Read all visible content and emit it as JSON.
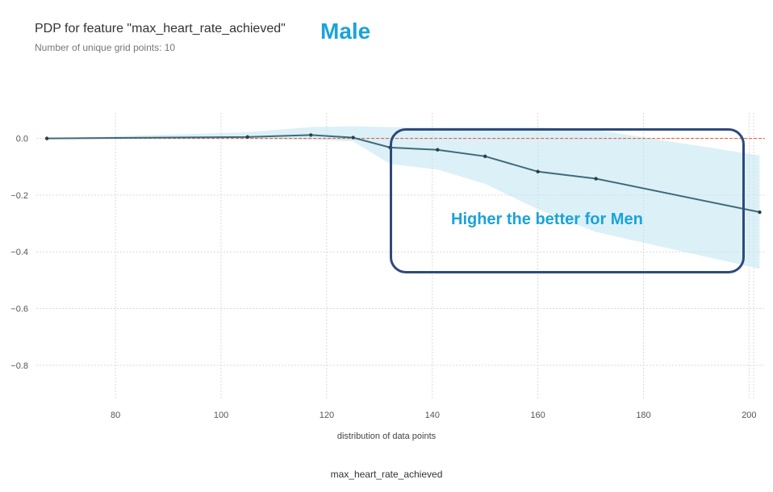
{
  "header": {
    "title": "PDP for feature \"max_heart_rate_achieved\"",
    "subtitle": "Number of unique grid points: 10",
    "tag": "Male"
  },
  "annotation": {
    "text": "Higher the better for Men"
  },
  "colors": {
    "line": "#3e6b7a",
    "band": "#bfe3f0",
    "baseline": "#e0552b",
    "grid": "#d9d9d9",
    "tag": "#1aa3db",
    "callout_border": "#2e4a7a"
  },
  "chart_data": {
    "type": "line",
    "title": "PDP for feature \"max_heart_rate_achieved\"",
    "subtitle": "Number of unique grid points: 10",
    "xlabel": "max_heart_rate_achieved",
    "xlabel_secondary": "distribution of data points",
    "ylabel": "",
    "xlim": [
      65,
      203
    ],
    "ylim": [
      -0.92,
      0.09
    ],
    "xticks": [
      80,
      100,
      120,
      140,
      160,
      180,
      200
    ],
    "yticks": [
      0.0,
      -0.2,
      -0.4,
      -0.6,
      -0.8
    ],
    "grid": true,
    "baseline": 0.0,
    "x": [
      67,
      105,
      117,
      125,
      132,
      141,
      150,
      160,
      171,
      202
    ],
    "series": [
      {
        "values": [
          0.0,
          0.005,
          0.012,
          0.003,
          -0.032,
          -0.04,
          -0.063,
          -0.117,
          -0.142,
          -0.26
        ]
      }
    ],
    "band": {
      "upper": [
        0.0,
        0.022,
        0.04,
        0.043,
        0.04,
        0.04,
        0.04,
        0.04,
        0.03,
        -0.06
      ],
      "lower": [
        0.0,
        -0.002,
        -0.005,
        -0.01,
        -0.09,
        -0.11,
        -0.16,
        -0.25,
        -0.33,
        -0.46
      ]
    }
  }
}
